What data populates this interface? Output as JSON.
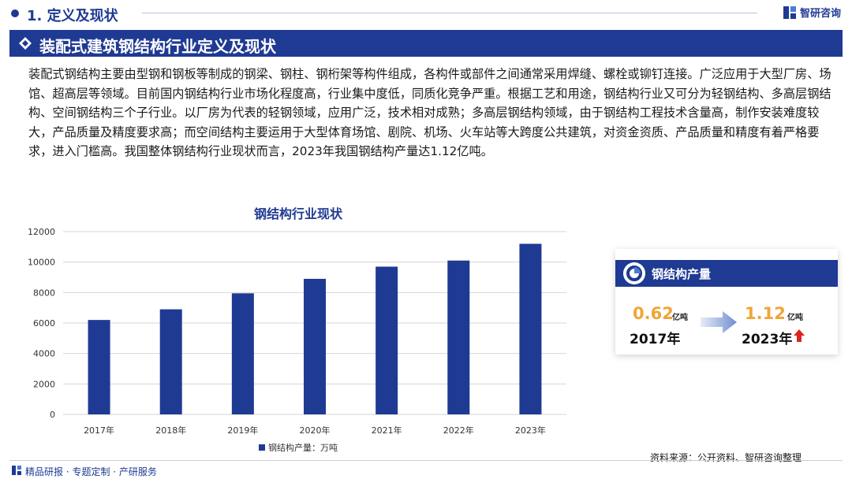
{
  "header": {
    "section_title": "1. 定义及现状",
    "brand": "智研咨询"
  },
  "banner": {
    "title": "装配式建筑钢结构行业定义及现状"
  },
  "intro": {
    "text": "装配式钢结构主要由型钢和钢板等制成的钢梁、钢柱、钢桁架等构件组成，各构件或部件之间通常采用焊缝、螺栓或铆钉连接。广泛应用于大型厂房、场馆、超高层等领域。目前国内钢结构行业市场化程度高，行业集中度低，同质化竞争严重。根据工艺和用途，钢结构行业又可分为轻钢结构、多高层钢结构、空间钢结构三个子行业。以厂房为代表的轻钢领域，应用广泛，技术相对成熟；多高层钢结构领域，由于钢结构工程技术含量高，制作安装难度较大，产品质量及精度要求高；而空间结构主要运用于大型体育场馆、剧院、机场、火车站等大跨度公共建筑，对资金资质、产品质量和精度有着严格要求，进入门槛高。我国整体钢结构行业现状而言，2023年我国钢结构产量达1.12亿吨。"
  },
  "chart_data": {
    "type": "bar",
    "title": "钢结构行业现状",
    "categories": [
      "2017年",
      "2018年",
      "2019年",
      "2020年",
      "2021年",
      "2022年",
      "2023年"
    ],
    "series": [
      {
        "name": "钢结构产量：万吨",
        "values": [
          6200,
          6900,
          7950,
          8900,
          9700,
          10100,
          11200
        ]
      }
    ],
    "ylim": [
      0,
      12000
    ],
    "yticks": [
      0,
      2000,
      4000,
      6000,
      8000,
      10000,
      12000
    ],
    "bar_color": "#1f3a93",
    "grid": true,
    "legend": "bottom"
  },
  "card": {
    "title": "钢结构产量",
    "start_value": "0.62",
    "start_unit": "亿吨",
    "start_year": "2017年",
    "end_value": "1.12",
    "end_unit": "亿吨",
    "end_year": "2023年"
  },
  "footer": {
    "tagline": "精品研报 · 专题定制 · 产研服务",
    "source": "资料来源：公开资料、智研咨询整理"
  },
  "colors": {
    "primary": "#1f3a93",
    "accent": "#f0a535",
    "up_arrow": "#d9251c"
  }
}
